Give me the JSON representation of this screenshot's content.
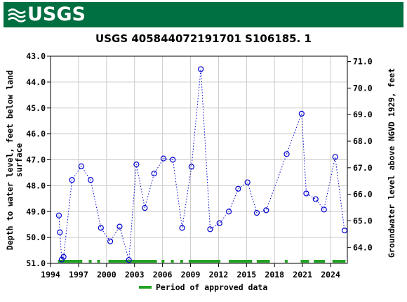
{
  "header": {
    "logo_text": "USGS"
  },
  "chart_data": {
    "type": "scatter",
    "title": "USGS 405844072191701 S106185. 1",
    "ylabel_left": "Depth to water level, feet below land surface",
    "ylabel_left_lines": [
      "Depth to water level, feet below land",
      "surface"
    ],
    "ylabel_right": "Groundwater level above NGVD 1929, feet",
    "xlim": [
      1994,
      2025.8
    ],
    "ylim_left": [
      51.0,
      43.0
    ],
    "ylim_right": [
      63.4,
      71.2
    ],
    "x_ticks": [
      1994,
      1997,
      2000,
      2003,
      2006,
      2009,
      2012,
      2015,
      2018,
      2021,
      2024
    ],
    "x_tick_labels": [
      "1994",
      "1997",
      "2000",
      "2003",
      "2006",
      "2009",
      "2012",
      "2015",
      "2018",
      "2021",
      "2024"
    ],
    "y_left_ticks": [
      43.0,
      44.0,
      45.0,
      46.0,
      47.0,
      48.0,
      49.0,
      50.0,
      51.0
    ],
    "y_left_tick_labels": [
      "43.0",
      "44.0",
      "45.0",
      "46.0",
      "47.0",
      "48.0",
      "49.0",
      "50.0",
      "51.0"
    ],
    "y_right_ticks": [
      64.0,
      65.0,
      66.0,
      67.0,
      68.0,
      69.0,
      70.0,
      71.0
    ],
    "y_right_tick_labels": [
      "64.0",
      "65.0",
      "66.0",
      "67.0",
      "68.0",
      "69.0",
      "70.0",
      "71.0"
    ],
    "grid": true,
    "series": [
      {
        "color": "#0000cc",
        "marker": "open-circle",
        "line": "dotted",
        "x": [
          1994.9,
          1995.0,
          1995.2,
          1995.4,
          1996.3,
          1997.3,
          1998.3,
          1999.4,
          2000.4,
          2001.4,
          2002.4,
          2003.2,
          2004.1,
          2005.1,
          2006.1,
          2007.1,
          2008.1,
          2009.1,
          2010.1,
          2011.1,
          2012.1,
          2013.1,
          2014.1,
          2015.1,
          2016.1,
          2017.1,
          2019.3,
          2020.9,
          2021.4,
          2022.4,
          2023.3,
          2024.5,
          2025.5
        ],
        "y": [
          49.15,
          49.8,
          50.85,
          50.75,
          47.78,
          47.25,
          47.78,
          49.63,
          50.15,
          49.58,
          50.87,
          47.18,
          48.86,
          47.53,
          46.95,
          47.0,
          49.63,
          47.27,
          43.5,
          49.68,
          49.45,
          49.0,
          48.12,
          47.87,
          49.05,
          48.95,
          46.78,
          45.22,
          48.3,
          48.52,
          48.92,
          46.89,
          49.73
        ]
      }
    ],
    "approved_periods": [
      [
        1994.8,
        1997.4
      ],
      [
        1998.1,
        1998.4
      ],
      [
        1999.0,
        1999.3
      ],
      [
        2000.2,
        2005.4
      ],
      [
        2005.9,
        2006.2
      ],
      [
        2006.9,
        2007.2
      ],
      [
        2007.9,
        2008.2
      ],
      [
        2008.8,
        2012.2
      ],
      [
        2013.1,
        2015.6
      ],
      [
        2016.1,
        2017.5
      ],
      [
        2019.1,
        2019.4
      ],
      [
        2020.8,
        2021.7
      ],
      [
        2022.2,
        2023.4
      ],
      [
        2024.2,
        2025.6
      ]
    ],
    "approved_color": "#23a323",
    "legend": {
      "label": "Period of approved data",
      "position": "bottom-center"
    }
  }
}
